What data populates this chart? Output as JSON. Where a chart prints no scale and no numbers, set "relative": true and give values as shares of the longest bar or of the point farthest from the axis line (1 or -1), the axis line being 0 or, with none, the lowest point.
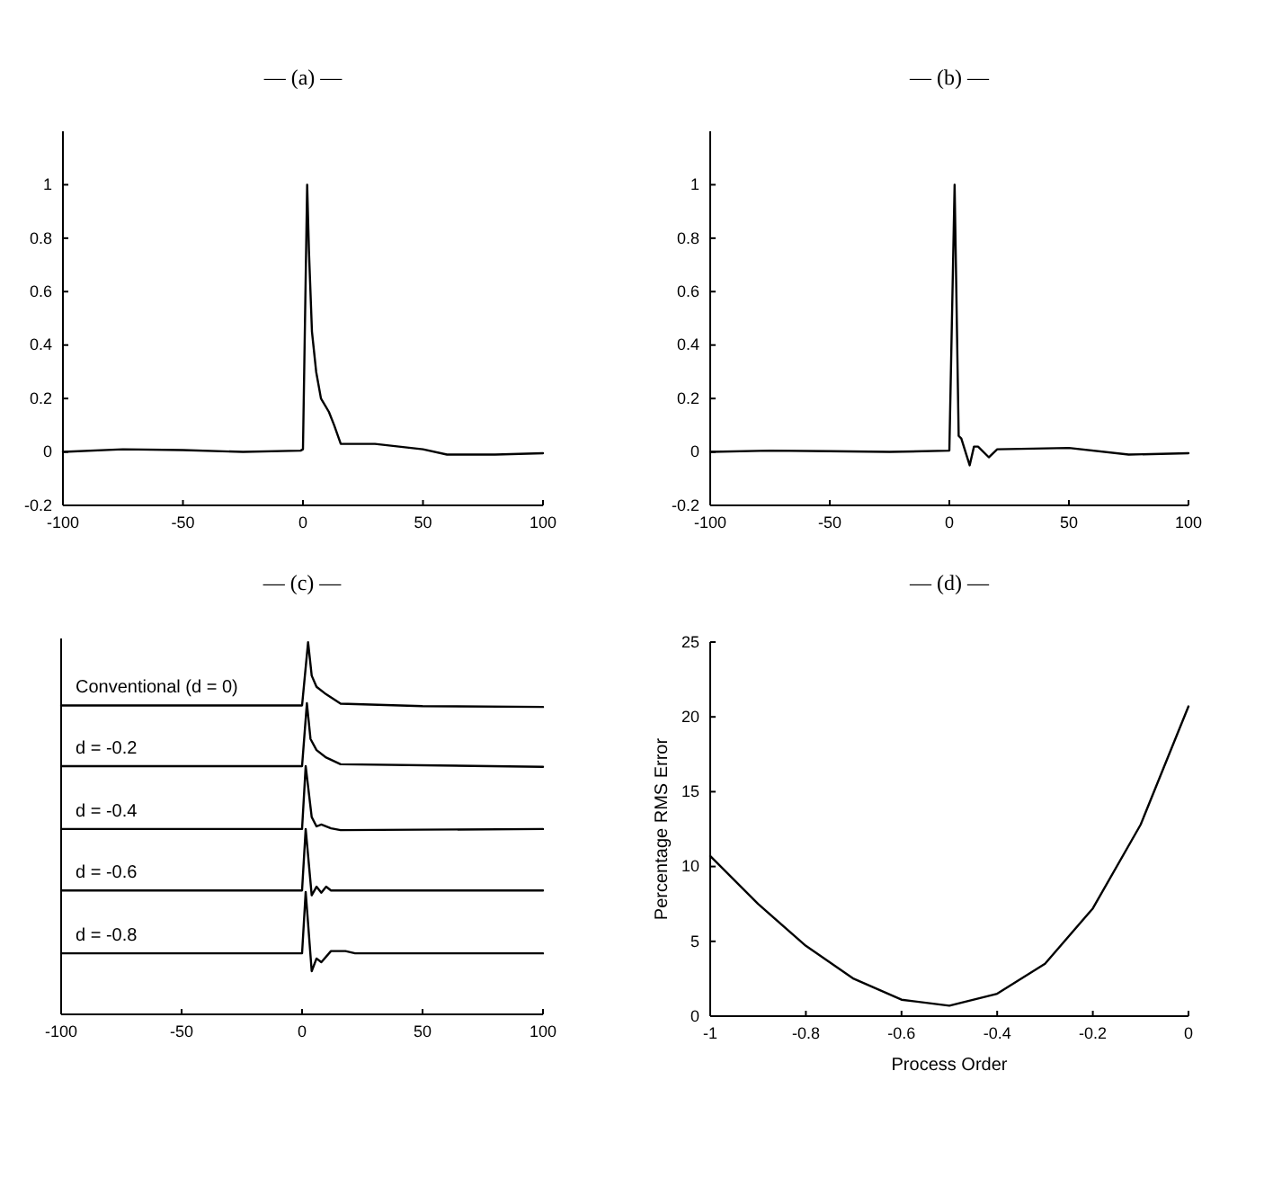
{
  "chart_data": [
    {
      "type": "line",
      "title": "— (a) —",
      "xlim": [
        -100,
        100
      ],
      "xticks": [
        -100,
        -50,
        0,
        50,
        100
      ],
      "ylim": [
        -0.2,
        1.2
      ],
      "yticks": [
        -0.2,
        0,
        0.2,
        0.4,
        0.6,
        0.8,
        1
      ],
      "series": [
        {
          "color": "#000000",
          "x": [
            -100,
            -75,
            -50,
            -25,
            -1,
            0,
            1.75,
            2.5,
            3.75,
            5.5,
            7.5,
            10.8,
            13,
            15.75,
            30,
            40,
            50,
            60,
            80,
            100
          ],
          "values": [
            0,
            0.01,
            0.007,
            0,
            0.005,
            0.01,
            1.0,
            0.75,
            0.45,
            0.3,
            0.2,
            0.15,
            0.1,
            0.03,
            0.03,
            0.02,
            0.01,
            -0.01,
            -0.01,
            -0.005
          ]
        }
      ]
    },
    {
      "type": "line",
      "title": "— (b) —",
      "xlim": [
        -100,
        100
      ],
      "xticks": [
        -100,
        -50,
        0,
        50,
        100
      ],
      "ylim": [
        -0.2,
        1.2
      ],
      "yticks": [
        -0.2,
        0,
        0.2,
        0.4,
        0.6,
        0.8,
        1
      ],
      "series": [
        {
          "color": "#000000",
          "x": [
            -100,
            -75,
            -50,
            -25,
            0,
            2.2,
            3.9,
            5,
            8.5,
            10.3,
            12,
            16.5,
            20,
            50,
            75,
            100
          ],
          "values": [
            0,
            0.005,
            0.003,
            0,
            0.005,
            1.0,
            0.06,
            0.05,
            -0.05,
            0.02,
            0.02,
            -0.02,
            0.01,
            0.015,
            -0.01,
            -0.005
          ]
        }
      ]
    },
    {
      "type": "line",
      "title": "— (c) —",
      "relative": true,
      "tick_labels": "x",
      "xlim": [
        -100,
        100
      ],
      "xticks": [
        -100,
        -50,
        0,
        50,
        100
      ],
      "series": [
        {
          "name": "Conventional (d = 0)",
          "color": "#000000",
          "x": [
            -100,
            0,
            2.5,
            4,
            6,
            10,
            16,
            50,
            100
          ],
          "values": [
            0.83,
            0.83,
            1.0,
            0.91,
            0.88,
            0.86,
            0.835,
            0.828,
            0.826
          ]
        },
        {
          "name": "d = -0.2",
          "color": "#000000",
          "x": [
            -100,
            0,
            2,
            3.5,
            6,
            10,
            16,
            100
          ],
          "values": [
            0.667,
            0.667,
            0.836,
            0.74,
            0.71,
            0.69,
            0.672,
            0.665
          ]
        },
        {
          "name": "d = -0.4",
          "color": "#000000",
          "x": [
            -100,
            0,
            1.5,
            4,
            6,
            8,
            12,
            16,
            100
          ],
          "values": [
            0.498,
            0.498,
            0.667,
            0.53,
            0.505,
            0.51,
            0.5,
            0.495,
            0.498
          ]
        },
        {
          "name": "d = -0.6",
          "color": "#000000",
          "x": [
            -100,
            0,
            1.5,
            4,
            6,
            8,
            10,
            12,
            100
          ],
          "values": [
            0.333,
            0.333,
            0.498,
            0.32,
            0.343,
            0.327,
            0.343,
            0.333,
            0.333
          ]
        },
        {
          "name": "d = -0.8",
          "color": "#000000",
          "x": [
            -100,
            0,
            1.5,
            4,
            6,
            8,
            12,
            18,
            22,
            100
          ],
          "values": [
            0.164,
            0.164,
            0.329,
            0.116,
            0.15,
            0.14,
            0.17,
            0.17,
            0.164,
            0.164
          ]
        }
      ]
    },
    {
      "type": "line",
      "title": "— (d) —",
      "xlabel": "Process Order",
      "ylabel": "Percentage RMS Error",
      "xlim": [
        -1,
        0
      ],
      "xticks": [
        -1,
        -0.8,
        -0.6,
        -0.4,
        -0.2,
        0
      ],
      "ylim": [
        0,
        25
      ],
      "yticks": [
        0,
        5,
        10,
        15,
        20,
        25
      ],
      "series": [
        {
          "color": "#000000",
          "x": [
            -1,
            -0.9,
            -0.8,
            -0.7,
            -0.6,
            -0.5,
            -0.4,
            -0.3,
            -0.2,
            -0.1,
            0
          ],
          "values": [
            10.7,
            7.5,
            4.7,
            2.5,
            1.1,
            0.7,
            1.5,
            3.5,
            7.2,
            12.8,
            20.7
          ]
        }
      ]
    }
  ]
}
